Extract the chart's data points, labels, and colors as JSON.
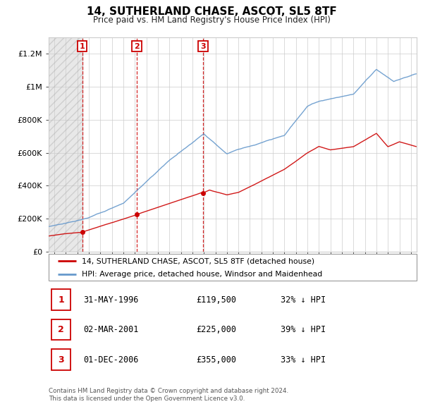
{
  "title": "14, SUTHERLAND CHASE, ASCOT, SL5 8TF",
  "subtitle": "Price paid vs. HM Land Registry's House Price Index (HPI)",
  "transactions": [
    {
      "num": 1,
      "date": "31-MAY-1996",
      "price": 119500,
      "year": 1996.42,
      "rel": "32% ↓ HPI"
    },
    {
      "num": 2,
      "date": "02-MAR-2001",
      "price": 225000,
      "year": 2001.17,
      "rel": "39% ↓ HPI"
    },
    {
      "num": 3,
      "date": "01-DEC-2006",
      "price": 355000,
      "year": 2006.92,
      "rel": "33% ↓ HPI"
    }
  ],
  "legend_line1": "14, SUTHERLAND CHASE, ASCOT, SL5 8TF (detached house)",
  "legend_line2": "HPI: Average price, detached house, Windsor and Maidenhead",
  "footer1": "Contains HM Land Registry data © Crown copyright and database right 2024.",
  "footer2": "This data is licensed under the Open Government Licence v3.0.",
  "price_color": "#cc0000",
  "hpi_color": "#6699cc",
  "vline_color": "#cc0000",
  "ylim_max": 1300000,
  "xmin": 1993.5,
  "xmax": 2025.5,
  "yticks": [
    0,
    200000,
    400000,
    600000,
    800000,
    1000000,
    1200000
  ],
  "ytick_labels": [
    "£0",
    "£200K",
    "£400K",
    "£600K",
    "£800K",
    "£1M",
    "£1.2M"
  ]
}
